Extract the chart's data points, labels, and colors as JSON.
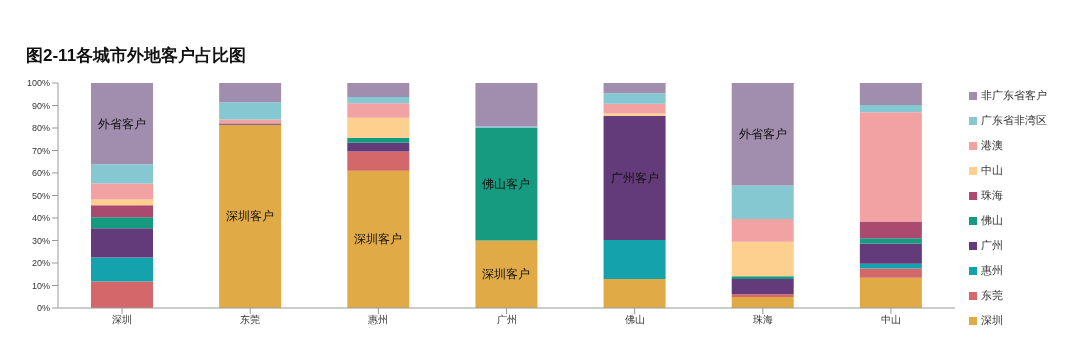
{
  "chart_data": {
    "type": "bar",
    "title": "图2-11各城市外地客户占比图",
    "stacked": true,
    "legend": "right",
    "grid": false,
    "categories": [
      "深圳",
      "东莞",
      "惠州",
      "广州",
      "佛山",
      "珠海",
      "中山"
    ],
    "ylim": [
      0,
      100
    ],
    "yticks": [
      {
        "value": 0,
        "label": "0%"
      },
      {
        "value": 10,
        "label": "10%"
      },
      {
        "value": 20,
        "label": "20%"
      },
      {
        "value": 30,
        "label": "30%"
      },
      {
        "value": 40,
        "label": "40%"
      },
      {
        "value": 50,
        "label": "50%"
      },
      {
        "value": 60,
        "label": "60%"
      },
      {
        "value": 70,
        "label": "70%"
      },
      {
        "value": 80,
        "label": "80%"
      },
      {
        "value": 90,
        "label": "90%"
      },
      {
        "value": 100,
        "label": "100%"
      }
    ],
    "series": [
      {
        "name": "深圳",
        "color": "#e0ab47",
        "values": [
          0,
          81.4,
          61,
          30,
          12.9,
          4.9,
          13.5
        ],
        "value_labels": [
          null,
          "深圳客户",
          "深圳客户",
          "深圳客户",
          null,
          null,
          null
        ]
      },
      {
        "name": "东莞",
        "color": "#d4676a",
        "values": [
          11.8,
          0,
          8.6,
          0,
          0,
          1.2,
          4.1
        ]
      },
      {
        "name": "惠州",
        "color": "#14a3ad",
        "values": [
          10.6,
          0,
          0,
          0,
          17.3,
          0,
          2.1
        ]
      },
      {
        "name": "广州",
        "color": "#643b7a",
        "values": [
          13,
          0.6,
          3.9,
          0,
          55.3,
          6.8,
          9
        ],
        "value_labels": [
          null,
          null,
          null,
          null,
          "广州客户",
          null,
          null
        ]
      },
      {
        "name": "佛山",
        "color": "#169b81",
        "values": [
          4.9,
          0,
          2.2,
          50,
          0,
          1.2,
          2.3
        ],
        "value_labels": [
          null,
          null,
          null,
          "佛山客户",
          null,
          null,
          null
        ]
      },
      {
        "name": "珠海",
        "color": "#a94a6e",
        "values": [
          5.4,
          0,
          0,
          0,
          0,
          0,
          7.4
        ]
      },
      {
        "name": "中山",
        "color": "#fdd08f",
        "values": [
          2.5,
          0,
          8.9,
          0,
          0.9,
          15.4,
          0
        ]
      },
      {
        "name": "港澳",
        "color": "#f2a2a2",
        "values": [
          7.1,
          1.8,
          6.4,
          0,
          4.4,
          10.1,
          48.6
        ]
      },
      {
        "name": "广东省非湾区",
        "color": "#86c8d2",
        "values": [
          8.6,
          7.6,
          2.8,
          0.7,
          4.6,
          14.8,
          3.2
        ]
      },
      {
        "name": "非广东省客户",
        "color": "#a18eae",
        "values": [
          36.1,
          8.6,
          6.2,
          19.3,
          4.6,
          45.6,
          9.8
        ],
        "value_labels": [
          "外省客户",
          null,
          null,
          null,
          null,
          "外省客户",
          null
        ]
      }
    ]
  }
}
